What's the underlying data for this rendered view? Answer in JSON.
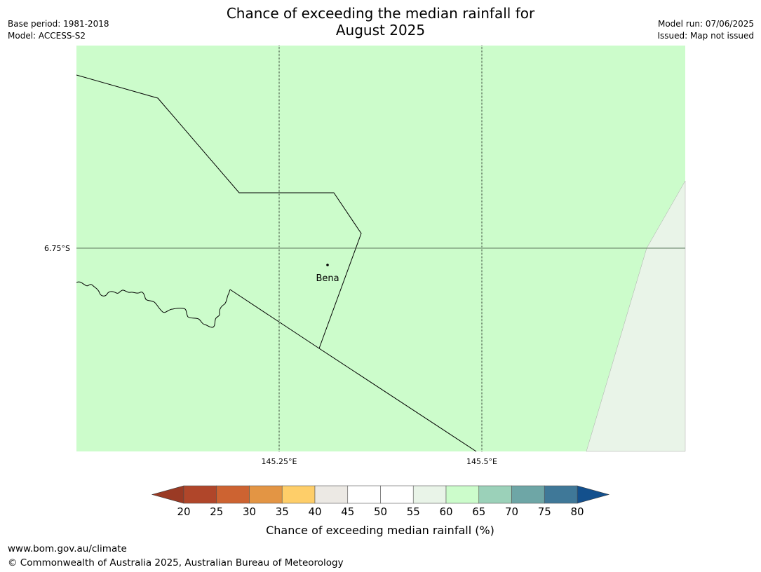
{
  "title": {
    "line1": "Chance of exceeding the median rainfall for",
    "line2": "August 2025"
  },
  "meta_left": {
    "base_period": "Base period: 1981-2018",
    "model": "Model: ACCESS-S2"
  },
  "meta_right": {
    "model_run": "Model run: 07/06/2025",
    "issued": "Issued: Map not issued"
  },
  "map": {
    "lat_label": "6.75°S",
    "lon_labels": [
      "145.25°E",
      "145.5°E"
    ],
    "town": "Bena",
    "colors": {
      "main_fill": "#ccfccb",
      "east_fill": "#e9f4e8",
      "grid_line": "#000000",
      "boundary": "#000000"
    }
  },
  "colorbar": {
    "ticks": [
      "20",
      "25",
      "30",
      "35",
      "40",
      "45",
      "50",
      "55",
      "60",
      "65",
      "70",
      "75",
      "80"
    ],
    "colors": [
      "#b0462a",
      "#cd6331",
      "#e39544",
      "#fece69",
      "#ece9e4",
      "#ffffff",
      "#ffffff",
      "#e9f4e8",
      "#ccfccb",
      "#9bd1b9",
      "#6ea6a6",
      "#3f7898"
    ],
    "under_color": "#9a3a24",
    "over_color": "#13508d",
    "label": "Chance of exceeding median rainfall (%)"
  },
  "footer": {
    "url": "www.bom.gov.au/climate",
    "copyright": "© Commonwealth of Australia 2025, Australian Bureau of Meteorology"
  }
}
